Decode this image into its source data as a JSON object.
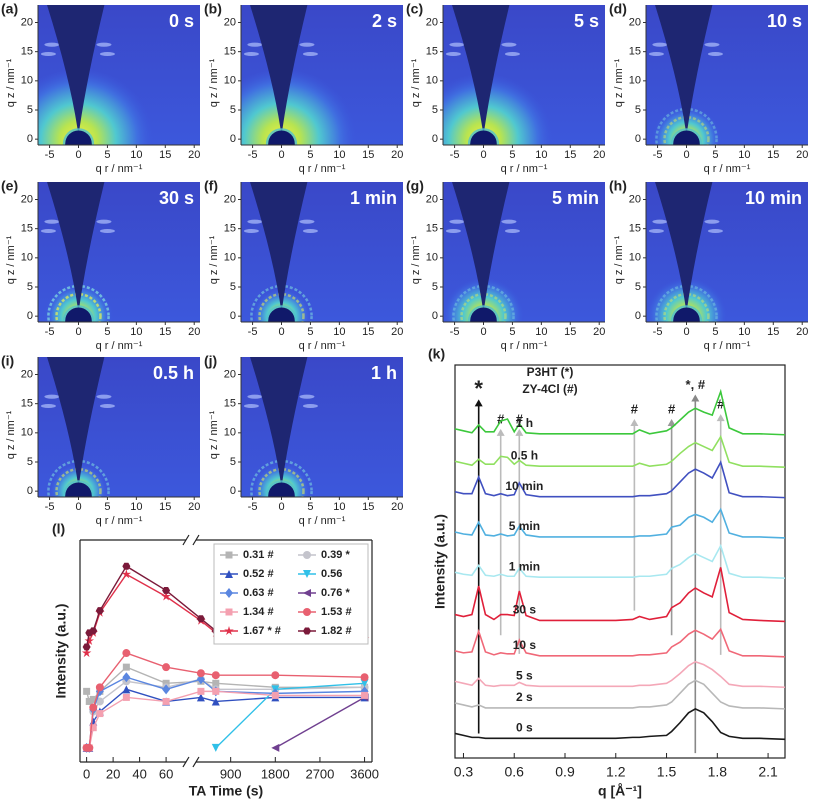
{
  "chart_data": [
    {
      "type": "giwaxs",
      "panel": "(a)",
      "label": "0 s",
      "xlabel": "q r / nm⁻¹",
      "ylabel": "q z / nm⁻¹",
      "xlim": [
        -7,
        21
      ],
      "ylim": [
        -1,
        23
      ],
      "xticks": [
        -5,
        0,
        5,
        10,
        15,
        20
      ],
      "yticks": [
        0,
        5,
        10,
        15,
        20
      ]
    },
    {
      "type": "giwaxs",
      "panel": "(b)",
      "label": "2 s",
      "xlabel": "q r / nm⁻¹",
      "ylabel": "q z / nm⁻¹",
      "xlim": [
        -7,
        21
      ],
      "ylim": [
        -1,
        23
      ],
      "xticks": [
        -5,
        0,
        5,
        10,
        15,
        20
      ],
      "yticks": [
        0,
        5,
        10,
        15,
        20
      ]
    },
    {
      "type": "giwaxs",
      "panel": "(c)",
      "label": "5 s",
      "xlabel": "q r / nm⁻¹",
      "ylabel": "q z / nm⁻¹",
      "xlim": [
        -7,
        21
      ],
      "ylim": [
        -1,
        23
      ],
      "xticks": [
        -5,
        0,
        5,
        10,
        15,
        20
      ],
      "yticks": [
        0,
        5,
        10,
        15,
        20
      ]
    },
    {
      "type": "giwaxs",
      "panel": "(d)",
      "label": "10 s",
      "xlabel": "q r / nm⁻¹",
      "ylabel": "q z / nm⁻¹",
      "xlim": [
        -7,
        21
      ],
      "ylim": [
        -1,
        23
      ],
      "xticks": [
        -5,
        0,
        5,
        10,
        15,
        20
      ],
      "yticks": [
        0,
        5,
        10,
        15,
        20
      ]
    },
    {
      "type": "giwaxs",
      "panel": "(e)",
      "label": "30 s",
      "xlabel": "q r / nm⁻¹",
      "ylabel": "q z / nm⁻¹",
      "xlim": [
        -7,
        21
      ],
      "ylim": [
        -1,
        23
      ],
      "xticks": [
        -5,
        0,
        5,
        10,
        15,
        20
      ],
      "yticks": [
        0,
        5,
        10,
        15,
        20
      ]
    },
    {
      "type": "giwaxs",
      "panel": "(f)",
      "label": "1 min",
      "xlabel": "q r / nm⁻¹",
      "ylabel": "q z / nm⁻¹",
      "xlim": [
        -7,
        21
      ],
      "ylim": [
        -1,
        23
      ],
      "xticks": [
        -5,
        0,
        5,
        10,
        15,
        20
      ],
      "yticks": [
        0,
        5,
        10,
        15,
        20
      ]
    },
    {
      "type": "giwaxs",
      "panel": "(g)",
      "label": "5 min",
      "xlabel": "q r / nm⁻¹",
      "ylabel": "q z / nm⁻¹",
      "xlim": [
        -7,
        21
      ],
      "ylim": [
        -1,
        23
      ],
      "xticks": [
        -5,
        0,
        5,
        10,
        15,
        20
      ],
      "yticks": [
        0,
        5,
        10,
        15,
        20
      ]
    },
    {
      "type": "giwaxs",
      "panel": "(h)",
      "label": "10 min",
      "xlabel": "q r / nm⁻¹",
      "ylabel": "q z / nm⁻¹",
      "xlim": [
        -7,
        21
      ],
      "ylim": [
        -1,
        23
      ],
      "xticks": [
        -5,
        0,
        5,
        10,
        15,
        20
      ],
      "yticks": [
        0,
        5,
        10,
        15,
        20
      ]
    },
    {
      "type": "giwaxs",
      "panel": "(i)",
      "label": "0.5 h",
      "xlabel": "q r / nm⁻¹",
      "ylabel": "q z / nm⁻¹",
      "xlim": [
        -7,
        21
      ],
      "ylim": [
        -1,
        23
      ],
      "xticks": [
        -5,
        0,
        5,
        10,
        15,
        20
      ],
      "yticks": [
        0,
        5,
        10,
        15,
        20
      ]
    },
    {
      "type": "giwaxs",
      "panel": "(j)",
      "label": "1 h",
      "xlabel": "q r / nm⁻¹",
      "ylabel": "q z / nm⁻¹",
      "xlim": [
        -7,
        21
      ],
      "ylim": [
        -1,
        23
      ],
      "xticks": [
        -5,
        0,
        5,
        10,
        15,
        20
      ],
      "yticks": [
        0,
        5,
        10,
        15,
        20
      ]
    },
    {
      "type": "stacked-line",
      "panel": "(k)",
      "xlabel": "q [Å⁻¹]",
      "ylabel": "Intensity (a.u.)",
      "annotations": [
        "P3HT (*)",
        "ZY-4Cl (#)"
      ],
      "markers": [
        {
          "q": 0.39,
          "label": "*"
        },
        {
          "q": 0.52,
          "label": "#"
        },
        {
          "q": 0.63,
          "label": "#"
        },
        {
          "q": 1.31,
          "label": "#"
        },
        {
          "q": 1.53,
          "label": "#"
        },
        {
          "q": 1.67,
          "label": "*, #"
        },
        {
          "q": 1.82,
          "label": "#"
        }
      ],
      "xlim": [
        0.25,
        2.2
      ],
      "ylim": [
        0,
        40
      ],
      "xticks": [
        0.3,
        0.6,
        0.9,
        1.2,
        1.5,
        1.8,
        2.1
      ],
      "x": [
        0.25,
        0.3,
        0.35,
        0.39,
        0.43,
        0.48,
        0.52,
        0.56,
        0.6,
        0.63,
        0.67,
        0.75,
        0.9,
        1.05,
        1.2,
        1.3,
        1.34,
        1.4,
        1.5,
        1.53,
        1.58,
        1.63,
        1.67,
        1.72,
        1.77,
        1.82,
        1.87,
        1.95,
        2.05,
        2.2
      ],
      "series": [
        {
          "name": "0 s",
          "color": "#1a1a1a",
          "values": [
            2.5,
            2.3,
            2.1,
            2.1,
            2.0,
            2.0,
            2.0,
            2.0,
            2.0,
            2.0,
            2.0,
            2.0,
            2.0,
            2.0,
            2.0,
            2.1,
            2.1,
            2.2,
            2.3,
            2.7,
            3.6,
            4.6,
            5.0,
            4.6,
            3.7,
            2.6,
            2.2,
            2.0,
            2.0,
            1.9
          ]
        },
        {
          "name": "2 s",
          "color": "#b8b8b8",
          "values": [
            5.6,
            5.4,
            5.2,
            5.4,
            5.1,
            5.1,
            5.1,
            5.1,
            5.1,
            5.1,
            5.1,
            5.1,
            5.1,
            5.1,
            5.1,
            5.1,
            5.2,
            5.2,
            5.4,
            5.7,
            6.6,
            7.5,
            7.9,
            7.5,
            6.6,
            5.7,
            5.3,
            5.1,
            5.1,
            5.0
          ]
        },
        {
          "name": "5 s",
          "color": "#f4a8b8",
          "values": [
            7.8,
            7.6,
            7.4,
            8.1,
            7.4,
            7.3,
            7.4,
            7.4,
            7.4,
            7.7,
            7.4,
            7.3,
            7.3,
            7.3,
            7.3,
            7.3,
            7.4,
            7.4,
            7.6,
            7.9,
            8.6,
            9.4,
            9.8,
            9.5,
            9.0,
            8.3,
            7.5,
            7.3,
            7.3,
            7.2
          ]
        },
        {
          "name": "10 s",
          "color": "#f06878",
          "values": [
            10.9,
            10.7,
            10.8,
            12.9,
            10.8,
            10.5,
            10.7,
            10.6,
            10.6,
            12.0,
            10.7,
            10.4,
            10.4,
            10.4,
            10.4,
            10.4,
            10.5,
            10.5,
            10.7,
            11.3,
            11.8,
            12.6,
            13.0,
            12.6,
            12.1,
            13.1,
            10.9,
            10.4,
            10.4,
            10.3
          ]
        },
        {
          "name": "30 s",
          "color": "#e0203a",
          "values": [
            14.6,
            14.4,
            14.6,
            17.5,
            14.6,
            14.1,
            14.6,
            14.6,
            14.5,
            17.0,
            14.5,
            14.0,
            14.0,
            14.0,
            14.0,
            14.1,
            14.4,
            14.1,
            14.4,
            15.3,
            15.8,
            16.8,
            17.3,
            16.8,
            16.4,
            19.4,
            14.8,
            14.1,
            14.0,
            13.9
          ]
        },
        {
          "name": "1 min",
          "color": "#a8e8f0",
          "values": [
            18.9,
            18.7,
            18.6,
            19.6,
            18.6,
            18.5,
            18.7,
            18.5,
            18.5,
            19.3,
            18.5,
            18.4,
            18.4,
            18.4,
            18.4,
            18.4,
            18.5,
            18.5,
            18.7,
            19.3,
            19.7,
            20.4,
            20.8,
            20.4,
            20.0,
            21.6,
            18.8,
            18.4,
            18.4,
            18.3
          ]
        },
        {
          "name": "5 min",
          "color": "#50b0e0",
          "values": [
            23.0,
            22.8,
            22.7,
            24.0,
            22.7,
            22.6,
            22.8,
            22.6,
            22.7,
            23.6,
            22.7,
            22.5,
            22.5,
            22.5,
            22.5,
            22.5,
            22.6,
            22.6,
            22.8,
            23.5,
            23.7,
            24.5,
            24.8,
            24.5,
            24.0,
            25.3,
            22.9,
            22.5,
            22.5,
            22.4
          ]
        },
        {
          "name": "10 min",
          "color": "#4050c0",
          "values": [
            27.1,
            26.9,
            26.9,
            28.6,
            26.9,
            26.7,
            26.9,
            26.7,
            26.8,
            28.0,
            26.8,
            26.6,
            26.6,
            26.6,
            26.6,
            26.6,
            26.7,
            26.7,
            26.9,
            27.2,
            28.1,
            29.0,
            29.4,
            29.0,
            28.5,
            30.1,
            27.0,
            26.6,
            26.6,
            26.5
          ]
        },
        {
          "name": "0.5 h",
          "color": "#90e060",
          "values": [
            30.2,
            30.0,
            29.8,
            30.4,
            29.9,
            29.9,
            30.7,
            30.6,
            29.9,
            30.3,
            29.8,
            29.7,
            29.7,
            29.7,
            29.7,
            29.7,
            30.0,
            29.7,
            29.9,
            30.2,
            31.0,
            31.7,
            32.1,
            31.7,
            31.3,
            32.7,
            30.1,
            29.7,
            29.7,
            29.6
          ]
        },
        {
          "name": "1 h",
          "color": "#3cc83c",
          "values": [
            33.5,
            33.3,
            33.1,
            33.9,
            33.2,
            33.2,
            34.3,
            34.5,
            33.2,
            34.0,
            33.1,
            33.0,
            33.0,
            33.0,
            33.0,
            33.0,
            33.4,
            33.0,
            33.3,
            33.6,
            34.4,
            35.2,
            35.6,
            35.2,
            34.9,
            37.3,
            33.6,
            33.0,
            33.0,
            32.9
          ]
        }
      ]
    },
    {
      "type": "line",
      "panel": "(l)",
      "xlabel": "TA Time (s)",
      "ylabel": "Intensity (a.u.)",
      "legend": "upper right",
      "xlim": [
        -5,
        3750
      ],
      "xbreak": [
        75,
        200
      ],
      "ylim": [
        -5,
        105
      ],
      "xticks": [
        0,
        20,
        40,
        60,
        900,
        1800,
        2700,
        3600
      ],
      "x": [
        0,
        2,
        5,
        10,
        30,
        60,
        300,
        600,
        1800,
        3600
      ],
      "series": [
        {
          "name": "0.31 #",
          "color": "#b4b4b4",
          "marker": "square",
          "values": [
            30,
            25,
            26,
            30,
            42,
            34,
            35,
            34,
            32,
            32
          ]
        },
        {
          "name": "0.39 *",
          "color": "#c4c4cc",
          "marker": "circle",
          "values": [
            2,
            2,
            20,
            25,
            35,
            32,
            36,
            31,
            31,
            32
          ]
        },
        {
          "name": "0.52 #",
          "color": "#3050c0",
          "marker": "triangle",
          "values": [
            2,
            2,
            15,
            20,
            31,
            25,
            27,
            25,
            27,
            27
          ]
        },
        {
          "name": "0.56",
          "color": "#30c0e8",
          "marker": "triangle-down",
          "values": [
            null,
            null,
            null,
            null,
            null,
            null,
            null,
            2,
            31,
            34
          ]
        },
        {
          "name": "0.63 #",
          "color": "#5a86e0",
          "marker": "diamond",
          "values": [
            2,
            2,
            21,
            30,
            37,
            31,
            36,
            30,
            29,
            30
          ]
        },
        {
          "name": "0.76 *",
          "color": "#704090",
          "marker": "triangle-left",
          "values": [
            null,
            null,
            null,
            null,
            null,
            null,
            null,
            null,
            2,
            27
          ]
        },
        {
          "name": "1.34 #",
          "color": "#f4a0b0",
          "marker": "square",
          "values": [
            2,
            2,
            12,
            19,
            27,
            25,
            30,
            30,
            28,
            28
          ]
        },
        {
          "name": "1.53 #",
          "color": "#e86070",
          "marker": "circle",
          "values": [
            2,
            2,
            22,
            32,
            49,
            42,
            39,
            38,
            38,
            37
          ]
        },
        {
          "name": "1.67 * #",
          "color": "#e0304a",
          "marker": "star",
          "values": [
            49,
            55,
            59,
            69,
            88,
            77,
            65,
            59,
            61,
            56
          ]
        },
        {
          "name": "1.82 #",
          "color": "#7b1a3a",
          "marker": "hexagon",
          "values": [
            52,
            59,
            60,
            70,
            92,
            80,
            66,
            60,
            62,
            58
          ]
        }
      ]
    }
  ]
}
